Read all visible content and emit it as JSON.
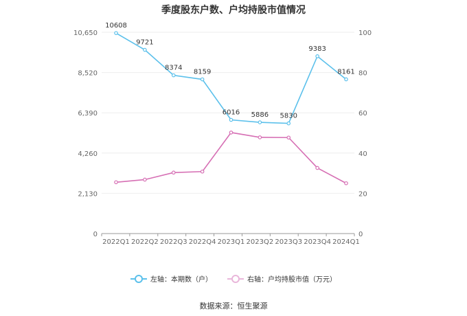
{
  "chart_data": {
    "type": "line",
    "title": "季度股东户数、户均持股市值情况",
    "categories": [
      "2022Q1",
      "2022Q2",
      "2022Q3",
      "2022Q4",
      "2023Q1",
      "2023Q2",
      "2023Q3",
      "2023Q4",
      "2024Q1"
    ],
    "left_axis": {
      "ticks": [
        "0",
        "2,130",
        "4,260",
        "6,390",
        "8,520",
        "10,650"
      ],
      "min": 0,
      "max": 10650
    },
    "right_axis": {
      "ticks": [
        "0",
        "20",
        "40",
        "60",
        "80",
        "100"
      ],
      "min": 0,
      "max": 100
    },
    "series": [
      {
        "name": "左轴：本期数（户）",
        "axis": "left",
        "color": "#5bc0eb",
        "values": [
          10608,
          9721,
          8374,
          8159,
          6016,
          5886,
          5830,
          9383,
          8161
        ],
        "labels": [
          "10608",
          "9721",
          "8374",
          "8159",
          "6016",
          "5886",
          "5830",
          "9383",
          "8161"
        ]
      },
      {
        "name": "右轴：户均持股市值（万元）",
        "axis": "right",
        "color": "#d66fb4",
        "values": [
          25.5,
          26.8,
          30.3,
          30.8,
          50.2,
          47.8,
          47.7,
          32.6,
          25.0
        ]
      }
    ],
    "grid": true,
    "legend_position": "bottom"
  },
  "source_text": "数据来源：恒生聚源"
}
